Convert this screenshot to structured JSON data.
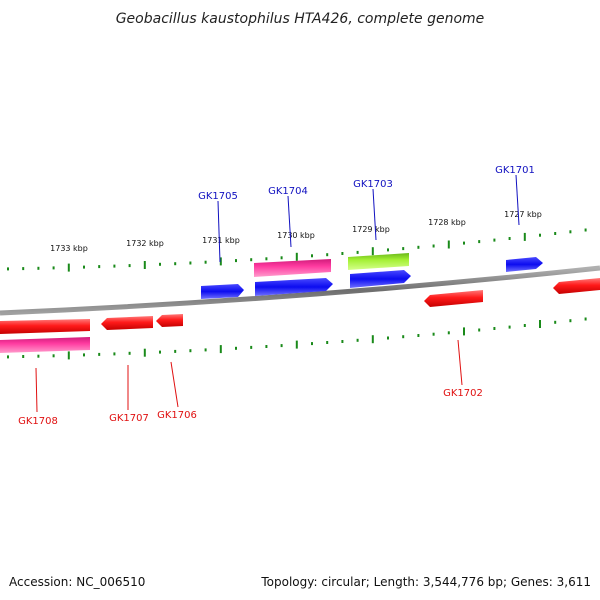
{
  "title": "Geobacillus kaustophilus HTA426, complete genome",
  "footer": {
    "accession": "Accession: NC_006510",
    "stats": "Topology: circular; Length: 3,544,776 bp; Genes: 3,611"
  },
  "colors": {
    "backbone": "#888888",
    "tick": "#1a8a1a",
    "label_top": "#1010c0",
    "label_bottom": "#e01010",
    "red": "#ff2020",
    "blue": "#1414ff",
    "magenta": "#ff3399",
    "lime": "#9ee52a"
  },
  "kbp_labels": [
    "1733 kbp",
    "1732 kbp",
    "1731 kbp",
    "1730 kbp",
    "1729 kbp",
    "1728 kbp",
    "1727 kbp"
  ],
  "genes": [
    {
      "name": "GK1701",
      "color": "blue",
      "strand": "top"
    },
    {
      "name": "GK1702",
      "color": "red",
      "strand": "bottom"
    },
    {
      "name": "GK1703",
      "color": "lime",
      "strand": "top"
    },
    {
      "name": "GK1704",
      "color": "magenta",
      "strand": "top"
    },
    {
      "name": "GK1705",
      "color": "blue",
      "strand": "top"
    },
    {
      "name": "GK1706",
      "color": "red",
      "strand": "bottom"
    },
    {
      "name": "GK1707",
      "color": "red",
      "strand": "bottom"
    },
    {
      "name": "GK1708",
      "color": "red",
      "strand": "bottom"
    }
  ]
}
